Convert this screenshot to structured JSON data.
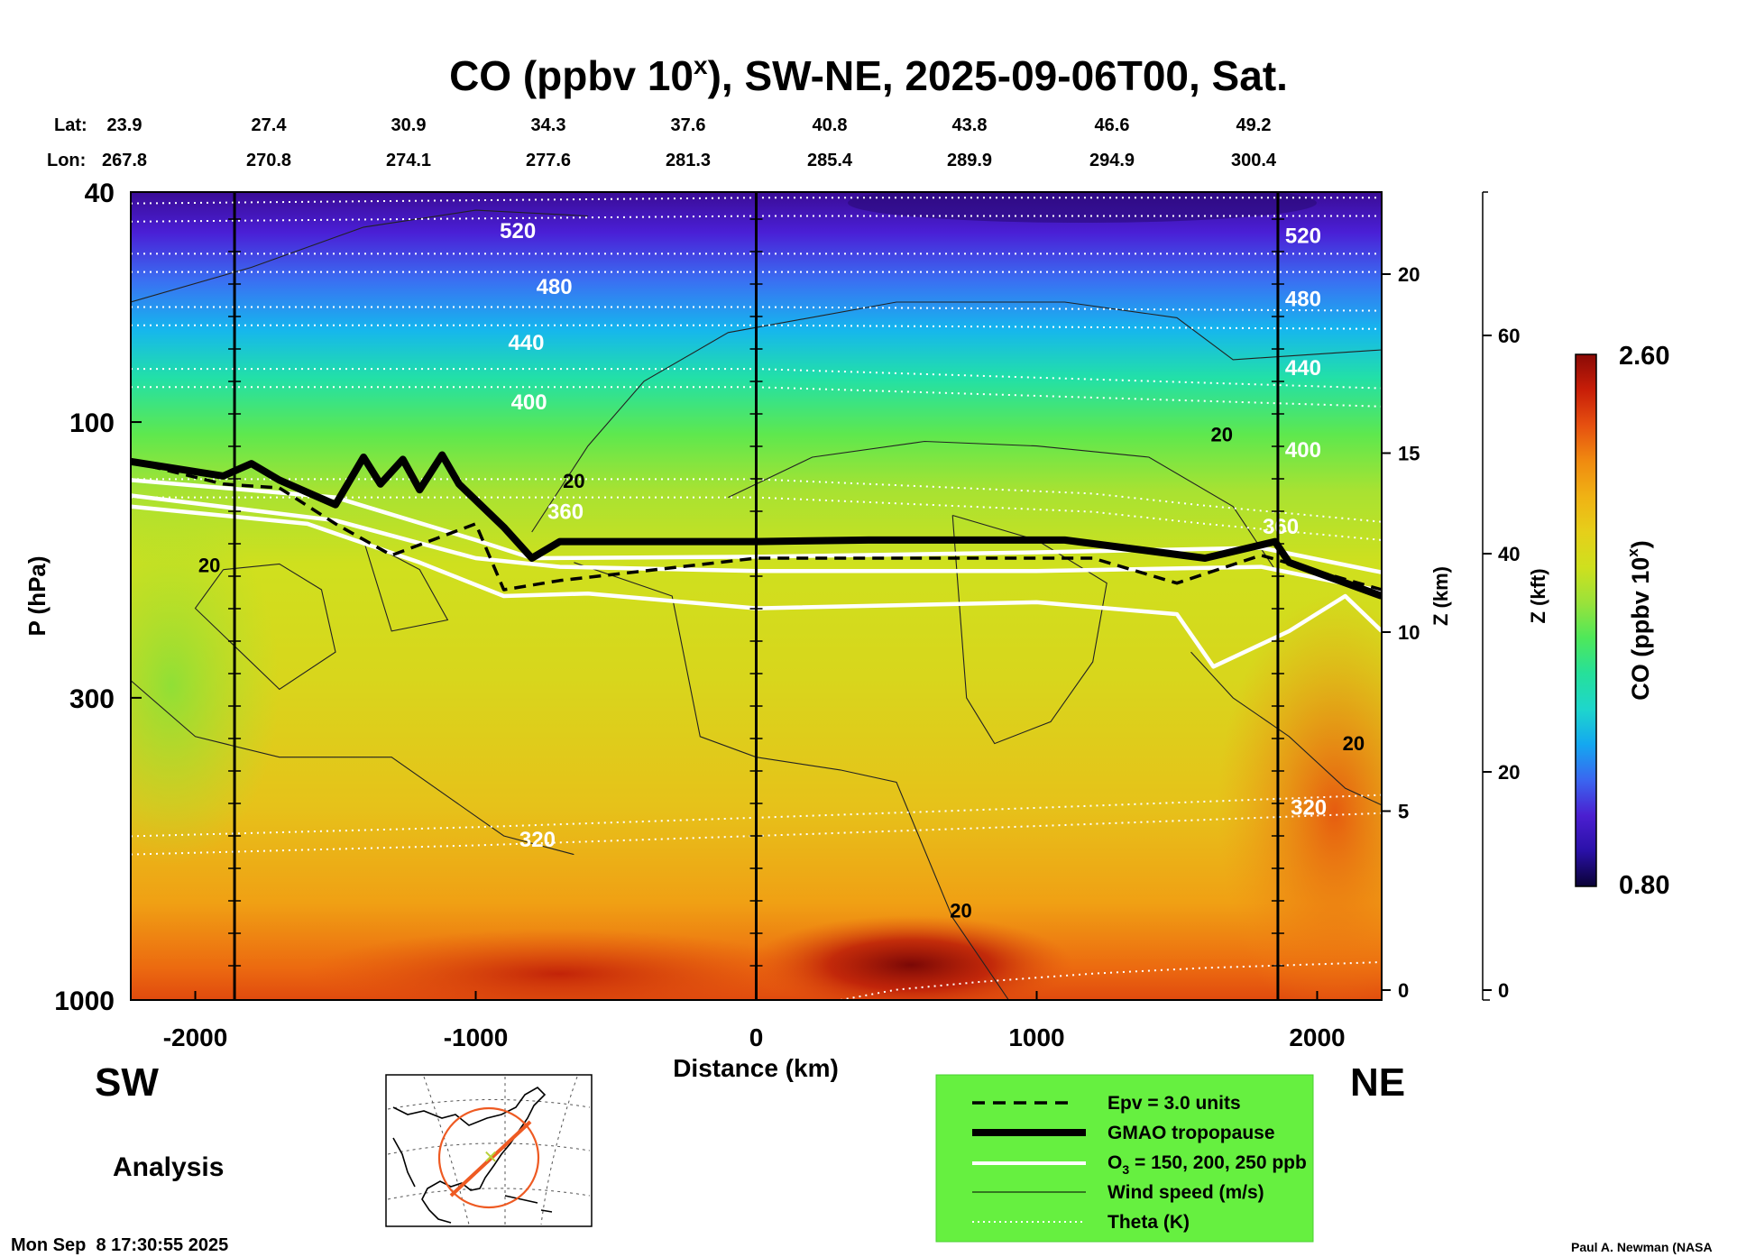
{
  "chart_data": {
    "type": "heatmap",
    "title_main": "CO (ppbv 10",
    "title_sup": "x",
    "title_rest": "), SW-NE, 2025-09-06T00, Sat.",
    "lat_label": "Lat:",
    "lon_label": "Lon:",
    "lats": [
      "23.9",
      "27.4",
      "30.9",
      "34.3",
      "37.6",
      "40.8",
      "43.8",
      "46.6",
      "49.2"
    ],
    "lons": [
      "267.8",
      "270.8",
      "274.1",
      "277.6",
      "281.3",
      "285.4",
      "289.9",
      "294.9",
      "300.4"
    ],
    "xlabel": "Distance (km)",
    "x_range": [
      -2230,
      2230
    ],
    "x_ticks": [
      -2000,
      -1000,
      0,
      1000,
      2000
    ],
    "x_tick_labels": [
      "-2000",
      "-1000",
      "0",
      "1000",
      "2000"
    ],
    "ylabel": "P (hPa)",
    "y_scale": "log",
    "y_range": [
      40,
      1000
    ],
    "y_ticks": [
      40,
      100,
      300,
      1000
    ],
    "y_tick_labels": [
      "40",
      "100",
      "300",
      "1000"
    ],
    "z_km_label": "Z (km)",
    "z_km_ticks": [
      0,
      5,
      10,
      15,
      20
    ],
    "z_km_tick_labels": [
      "0",
      "5",
      "10",
      "15",
      "20"
    ],
    "z_kft_label": "Z (kft)",
    "z_kft_ticks": [
      0,
      20,
      40,
      60
    ],
    "z_kft_tick_labels": [
      "0",
      "20",
      "40",
      "60"
    ],
    "vertical_lines_km": [
      -1860,
      0,
      1860
    ],
    "theta_contours": [
      {
        "label": "520",
        "points": [
          [
            -2230,
            45
          ],
          [
            0,
            44
          ],
          [
            2230,
            44
          ]
        ]
      },
      {
        "label": "480",
        "points": [
          [
            -2230,
            55
          ],
          [
            0,
            55
          ],
          [
            2230,
            55
          ]
        ]
      },
      {
        "label": "440",
        "points": [
          [
            -2230,
            68
          ],
          [
            0,
            68
          ],
          [
            2230,
            69
          ]
        ]
      },
      {
        "label": "400",
        "points": [
          [
            -2230,
            87
          ],
          [
            0,
            87
          ],
          [
            2230,
            94
          ]
        ]
      },
      {
        "label": "360",
        "points": [
          [
            -2230,
            135
          ],
          [
            0,
            135
          ],
          [
            1200,
            143
          ],
          [
            1600,
            150
          ],
          [
            2230,
            160
          ]
        ]
      },
      {
        "label": "320",
        "points": [
          [
            -2230,
            560
          ],
          [
            -1000,
            540
          ],
          [
            0,
            520
          ],
          [
            1000,
            500
          ],
          [
            2230,
            475
          ]
        ]
      }
    ],
    "theta_label_positions_km": [
      [
        -850,
        48
      ],
      [
        1950,
        49
      ],
      [
        -720,
        60
      ],
      [
        1950,
        63
      ],
      [
        -820,
        75
      ],
      [
        1950,
        83
      ],
      [
        -810,
        95
      ],
      [
        1950,
        115
      ],
      [
        -680,
        147
      ],
      [
        1870,
        156
      ],
      [
        -780,
        543
      ],
      [
        1970,
        478
      ]
    ],
    "tropopause_gmao": [
      [
        -2230,
        117
      ],
      [
        -1900,
        124
      ],
      [
        -1800,
        118
      ],
      [
        -1700,
        126
      ],
      [
        -1500,
        139
      ],
      [
        -1400,
        115
      ],
      [
        -1340,
        128
      ],
      [
        -1260,
        116
      ],
      [
        -1200,
        131
      ],
      [
        -1120,
        114
      ],
      [
        -1060,
        128
      ],
      [
        -900,
        152
      ],
      [
        -800,
        172
      ],
      [
        -700,
        161
      ],
      [
        -400,
        161
      ],
      [
        0,
        161
      ],
      [
        400,
        160
      ],
      [
        1100,
        160
      ],
      [
        1600,
        172
      ],
      [
        1850,
        161
      ],
      [
        1900,
        175
      ],
      [
        2230,
        200
      ]
    ],
    "epv_3": [
      [
        -2230,
        117
      ],
      [
        -1900,
        128
      ],
      [
        -1700,
        130
      ],
      [
        -1500,
        150
      ],
      [
        -1300,
        170
      ],
      [
        -1000,
        150
      ],
      [
        -900,
        195
      ],
      [
        -700,
        188
      ],
      [
        0,
        172
      ],
      [
        600,
        172
      ],
      [
        1200,
        172
      ],
      [
        1500,
        190
      ],
      [
        1800,
        170
      ],
      [
        2230,
        195
      ]
    ],
    "ozone_contours": [
      {
        "label": "O3 150",
        "points": [
          [
            -2230,
            126
          ],
          [
            -1500,
            135
          ],
          [
            -1000,
            160
          ],
          [
            -800,
            172
          ],
          [
            0,
            171
          ],
          [
            1000,
            168
          ],
          [
            1800,
            165
          ],
          [
            2230,
            182
          ]
        ]
      },
      {
        "label": "O3 200",
        "points": [
          [
            -2230,
            134
          ],
          [
            -1500,
            148
          ],
          [
            -1000,
            172
          ],
          [
            -700,
            178
          ],
          [
            0,
            181
          ],
          [
            1000,
            181
          ],
          [
            1800,
            178
          ],
          [
            2230,
            196
          ]
        ]
      },
      {
        "label": "O3 250",
        "points": [
          [
            -2230,
            140
          ],
          [
            -1600,
            150
          ],
          [
            -1200,
            175
          ],
          [
            -900,
            200
          ],
          [
            -600,
            198
          ],
          [
            0,
            210
          ],
          [
            1000,
            205
          ],
          [
            1500,
            215
          ],
          [
            1630,
            265
          ],
          [
            1900,
            230
          ],
          [
            2100,
            200
          ],
          [
            2230,
            230
          ]
        ]
      }
    ],
    "wind_label": "20",
    "wind_label_positions_km": [
      [
        -1950,
        182
      ],
      [
        -650,
        130
      ],
      [
        1660,
        108
      ],
      [
        2130,
        370
      ],
      [
        730,
        720
      ]
    ],
    "colorbar_max": "2.60",
    "colorbar_min": "0.80",
    "colorbar_label": "CO (ppbv 10",
    "colorbar_label_sup": "x",
    "colorbar_label_end": ")",
    "colorbar_colors": [
      "#0a0235",
      "#2a10a8",
      "#4b1fd0",
      "#3a66f0",
      "#14a8f0",
      "#1ed6cc",
      "#26e09a",
      "#4ee85a",
      "#9ae23a",
      "#cfe01e",
      "#e6cf1a",
      "#f0b214",
      "#f08a10",
      "#e65010",
      "#c81e08",
      "#8a0a06"
    ],
    "legend": {
      "epv": "Epv = 3.0 units",
      "tropopause": "GMAO tropopause",
      "o3_prefix": "O",
      "o3_sub": "3",
      "o3_suffix": " = 150, 200, 250 ppb",
      "wind": "Wind speed (m/s)",
      "theta": "Theta (K)"
    },
    "left_label": "SW",
    "right_label": "NE",
    "analysis_label": "Analysis",
    "timestamp": "Mon Sep  8 17:30:55 2025",
    "author": "Paul A. Newman (NASA"
  }
}
